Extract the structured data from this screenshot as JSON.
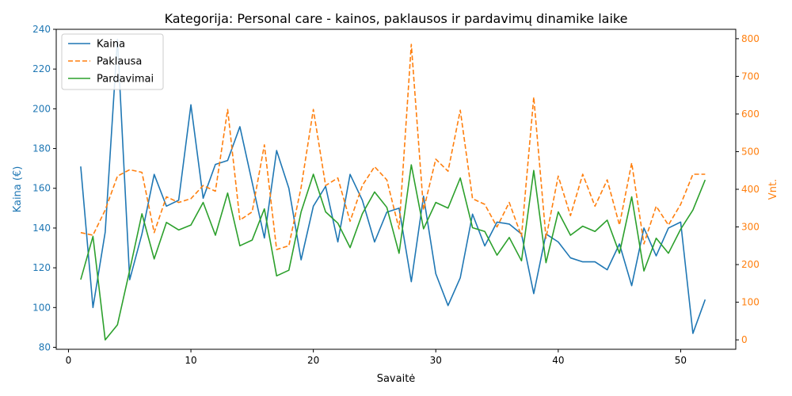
{
  "chart_data": {
    "type": "line",
    "title": "Kategorija: Personal care - kainos, paklausos ir pardavimų dinamike laike",
    "xlabel": "Savaitė",
    "ylabel_left": "Kaina (€)",
    "ylabel_right": "Vnt.",
    "xlim": [
      -1,
      54.5
    ],
    "ylim_left": [
      79,
      240
    ],
    "ylim_right": [
      -25,
      825
    ],
    "x_ticks": [
      0,
      10,
      20,
      30,
      40,
      50
    ],
    "y_ticks_left": [
      80,
      100,
      120,
      140,
      160,
      180,
      200,
      220,
      240
    ],
    "y_ticks_right": [
      0,
      100,
      200,
      300,
      400,
      500,
      600,
      700,
      800
    ],
    "legend_position": "top-left",
    "grid": false,
    "x": [
      1,
      2,
      3,
      4,
      5,
      6,
      7,
      8,
      9,
      10,
      11,
      12,
      13,
      14,
      15,
      16,
      17,
      18,
      19,
      20,
      21,
      22,
      23,
      24,
      25,
      26,
      27,
      28,
      29,
      30,
      31,
      32,
      33,
      34,
      35,
      36,
      37,
      38,
      39,
      40,
      41,
      42,
      43,
      44,
      45,
      46,
      47,
      48,
      49,
      50,
      51,
      52
    ],
    "series": [
      {
        "name": "Kaina",
        "axis": "left",
        "color": "#1f77b4",
        "style": "solid",
        "values": [
          171,
          100,
          138,
          235,
          114,
          137,
          167,
          151,
          154,
          202,
          155,
          172,
          174,
          191,
          163,
          135,
          179,
          160,
          124,
          151,
          161,
          133,
          167,
          154,
          133,
          148,
          150,
          113,
          156,
          117,
          101,
          115,
          147,
          131,
          143,
          142,
          137,
          107,
          137,
          133,
          125,
          123,
          123,
          119,
          132,
          111,
          140,
          126,
          140,
          143,
          87,
          104
        ]
      },
      {
        "name": "Paklausa",
        "axis": "right",
        "color": "#ff7f0e",
        "style": "dashed",
        "values": [
          285,
          278,
          345,
          435,
          452,
          445,
          285,
          380,
          365,
          375,
          410,
          395,
          612,
          318,
          340,
          518,
          240,
          250,
          405,
          612,
          410,
          430,
          315,
          410,
          460,
          425,
          295,
          785,
          345,
          480,
          448,
          610,
          375,
          360,
          300,
          365,
          275,
          645,
          270,
          435,
          330,
          440,
          355,
          425,
          305,
          470,
          255,
          355,
          305,
          360,
          440,
          440
        ]
      },
      {
        "name": "Pardavimai",
        "axis": "right",
        "color": "#2ca02c",
        "style": "solid",
        "values": [
          160,
          275,
          0,
          40,
          185,
          335,
          215,
          312,
          292,
          305,
          365,
          278,
          390,
          250,
          265,
          348,
          170,
          185,
          340,
          440,
          340,
          310,
          245,
          335,
          393,
          352,
          230,
          465,
          295,
          365,
          350,
          430,
          298,
          288,
          225,
          272,
          210,
          450,
          205,
          340,
          278,
          302,
          288,
          318,
          230,
          380,
          183,
          270,
          230,
          294,
          345,
          425
        ]
      }
    ]
  }
}
